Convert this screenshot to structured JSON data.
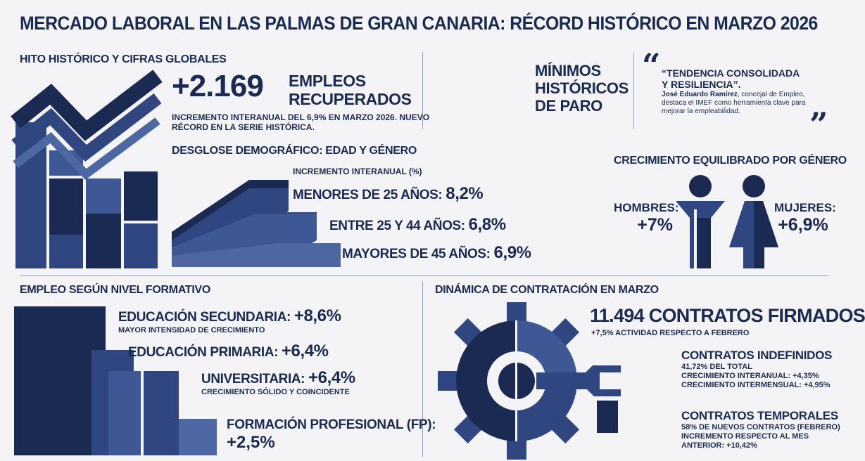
{
  "title": "MERCADO LABORAL EN LAS PALMAS DE GRAN CANARIA: RÉCORD HISTÓRICO EN MARZO 2026",
  "hito": {
    "section": "HITO HISTÓRICO Y CIFRAS GLOBALES",
    "value": "+2.169",
    "label_line1": "EMPLEOS",
    "label_line2": "RECUPERADOS",
    "desc_line1": "INCREMENTO INTERANUAL DEL 6,9% EN MARZO 2026. NUEVO",
    "desc_line2": "RÉCORD EN LA SERIE HISTÓRICA."
  },
  "minimos": {
    "line1": "MÍNIMOS",
    "line2": "HISTÓRICOS",
    "line3": "DE PARO"
  },
  "quote": {
    "line1": "“TENDENCIA CONSOLIDADA",
    "line2": "Y RESILIENCIA”.",
    "author": "José Eduardo Ramírez",
    "author_rest": ", concejal de Empleo,",
    "text_line2": "destaca el IMEF como herramienta clave para",
    "text_line3": "mejorar la empleabilidad."
  },
  "demografico": {
    "section": "DESGLOSE DEMOGRÁFICO: EDAD Y GÉNERO",
    "subtitle": "INCREMENTO INTERANUAL (%)",
    "items": [
      {
        "label": "MENORES DE 25 AÑOS:",
        "value": "8,2%"
      },
      {
        "label": "ENTRE 25 Y 44 AÑOS:",
        "value": "6,8%"
      },
      {
        "label": "MAYORES DE 45 AÑOS:",
        "value": "6,9%"
      }
    ]
  },
  "genero": {
    "section": "CRECIMIENTO EQUILIBRADO POR GÉNERO",
    "hombres_label": "HOMBRES:",
    "hombres_value": "+7%",
    "mujeres_label": "MUJERES:",
    "mujeres_value": "+6,9%"
  },
  "formativo": {
    "section": "EMPLEO SEGÚN NIVEL FORMATIVO",
    "items": [
      {
        "label": "EDUCACIÓN SECUNDARIA:",
        "value": "+8,6%",
        "note": "MAYOR INTENSIDAD DE CRECIMIENTO"
      },
      {
        "label": "EDUCACIÓN PRIMARIA:",
        "value": "+6,4%",
        "note": ""
      },
      {
        "label": "UNIVERSITARIA:",
        "value": "+6,4%",
        "note": "CRECIMIENTO SÓLIDO Y COINCIDENTE"
      },
      {
        "label": "FORMACIÓN PROFESIONAL (FP):",
        "value": "+2,5%",
        "note": ""
      }
    ]
  },
  "contratacion": {
    "section": "DINÁMICA DE CONTRATACIÓN EN MARZO",
    "headline": "11.494 CONTRATOS FIRMADOS",
    "headline_sub": "+7,5% ACTIVIDAD RESPECTO A FEBRERO",
    "indefinidos": {
      "title": "CONTRATOS INDEFINIDOS",
      "line1": "41,72% DEL TOTAL",
      "line2": "CRECIMIENTO INTERANUAL: +4,35%",
      "line3": "CRECIMIENTO INTERMENSUAL: +4,95%"
    },
    "temporales": {
      "title": "CONTRATOS TEMPORALES",
      "line1": "58% DE NUEVOS CONTRATOS (FEBRERO)",
      "line2": "INCREMENTO RESPECTO AL MES",
      "line3": "ANTERIOR: +10,42%"
    }
  },
  "colors": {
    "navy": "#1b2a52",
    "mid": "#2f4680",
    "light": "#4d67a3"
  }
}
